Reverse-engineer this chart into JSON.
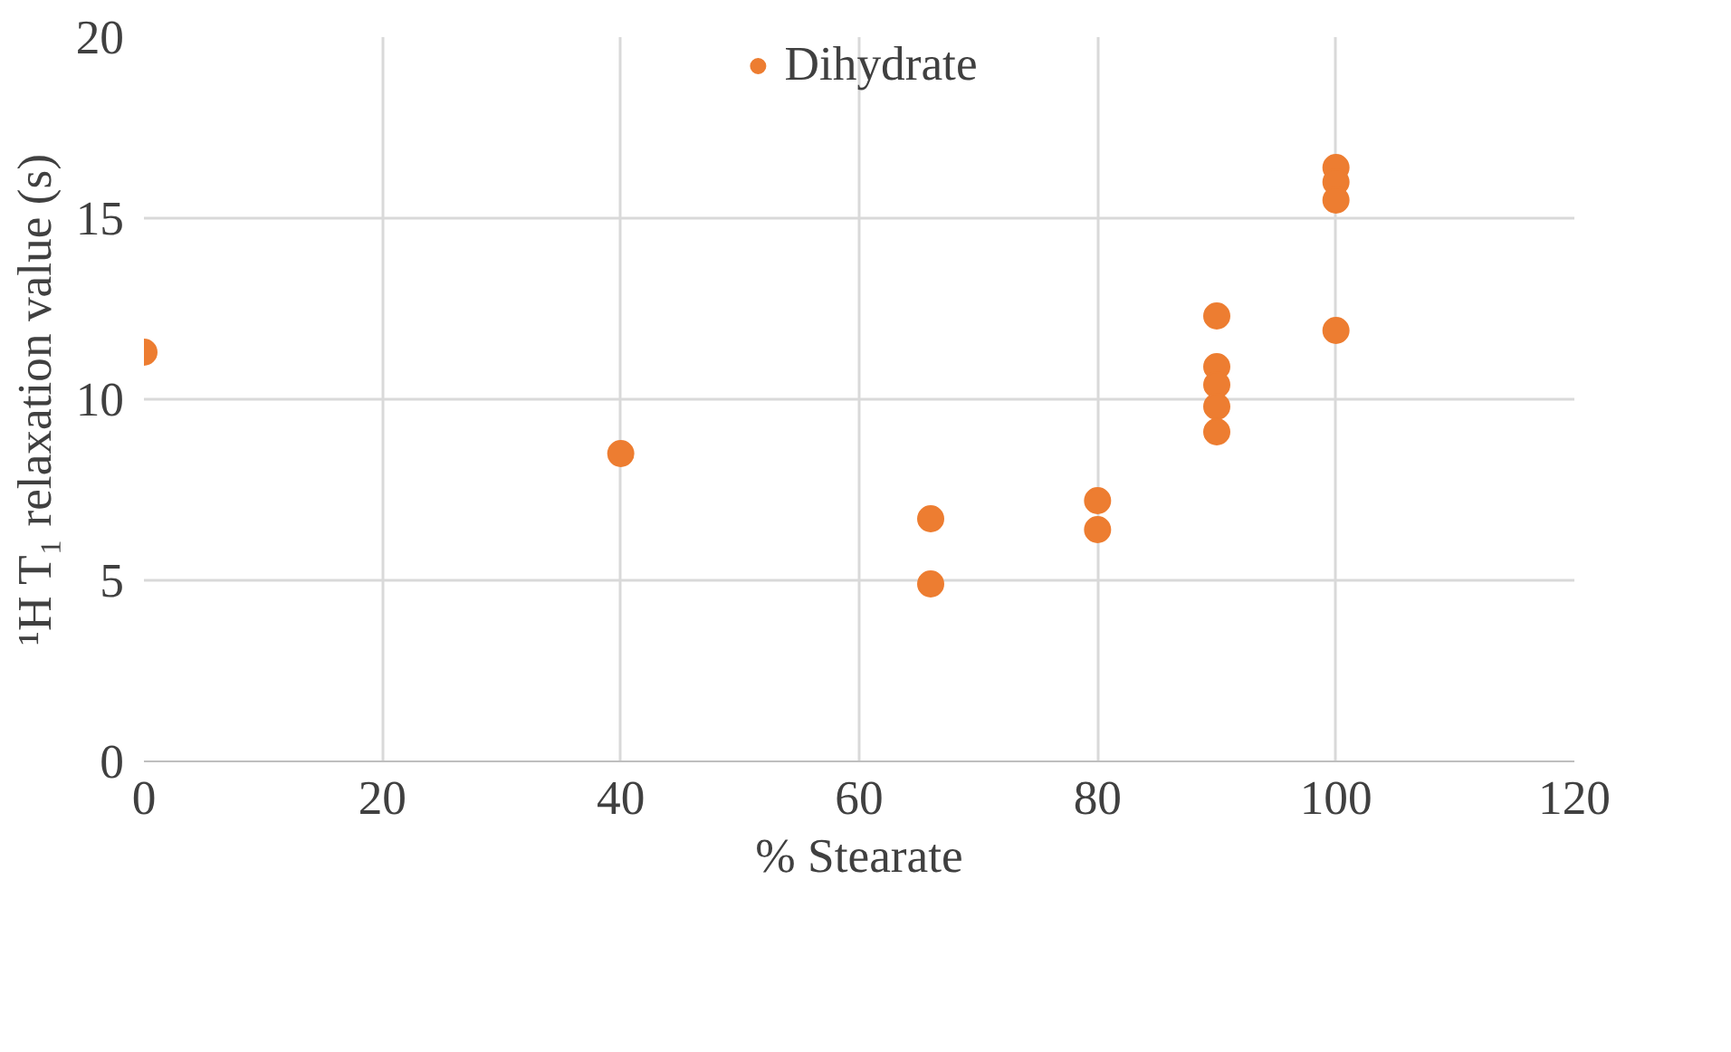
{
  "chart_data": {
    "type": "scatter",
    "xlabel": "% Stearate",
    "ylabel": "¹H T₁ relaxation value (s)",
    "xlim": [
      0,
      120
    ],
    "xticks": [
      0,
      20,
      40,
      60,
      80,
      100,
      120
    ],
    "ylim": [
      0,
      20
    ],
    "yticks": [
      0,
      5,
      10,
      15,
      20
    ],
    "grid": true,
    "legend": "top",
    "marker": "circle",
    "series": [
      {
        "name": "Dihydrate",
        "color": "#ed7d31",
        "x": [
          0,
          40,
          66,
          66,
          80,
          80,
          90,
          90,
          90,
          90,
          90,
          100,
          100,
          100,
          100
        ],
        "values": [
          11.3,
          8.5,
          6.7,
          4.9,
          7.2,
          6.4,
          12.3,
          10.9,
          10.4,
          9.8,
          9.1,
          16.4,
          16.0,
          15.5,
          11.9
        ]
      }
    ]
  }
}
